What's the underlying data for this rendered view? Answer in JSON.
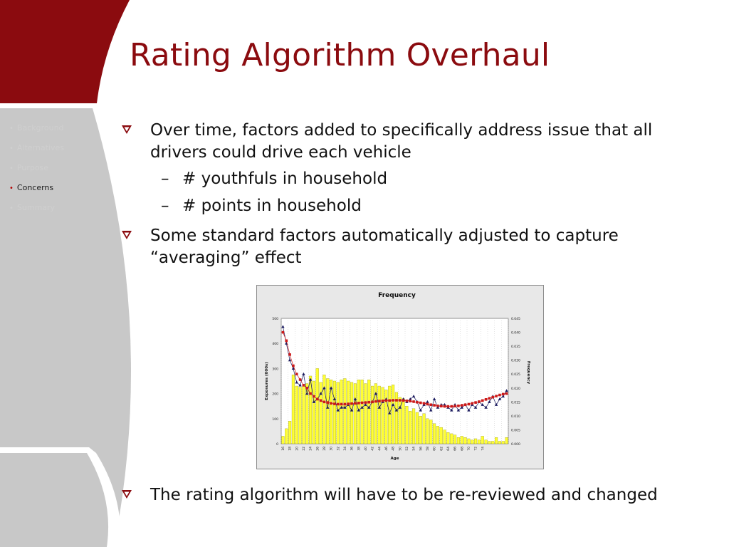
{
  "slide": {
    "title": "Rating Algorithm Overhaul",
    "colors": {
      "accent": "#8b0b0f",
      "sidebar": "#c8c8c8",
      "active_dot": "#b30000"
    }
  },
  "nav": {
    "items": [
      {
        "label": "Background",
        "active": false
      },
      {
        "label": "Alternatives",
        "active": false
      },
      {
        "label": "Purpose",
        "active": false
      },
      {
        "label": "Concerns",
        "active": true
      },
      {
        "label": "Summary",
        "active": false
      }
    ]
  },
  "content": {
    "bullet_icon": "checkbox-arrow-icon",
    "bullet1": "Over time, factors added to specifically address issue that all drivers could drive each vehicle",
    "sub1": "# youthfuls in household",
    "sub2": "# points in household",
    "sub_marker": "–",
    "bullet2": "Some standard factors automatically adjusted to capture “averaging” effect",
    "bullet3": "The rating algorithm will have to be re-reviewed and changed"
  },
  "chart_data": {
    "type": "bar",
    "title": "Frequency",
    "xlabel": "Age",
    "ylabel": "Exposures (000s)",
    "y2label": "Frequency",
    "ylim": [
      0,
      500
    ],
    "y2lim": [
      0,
      0.045
    ],
    "yticks": [
      "0",
      "100",
      "200",
      "300",
      "400",
      "500"
    ],
    "y2ticks": [
      "0.000",
      "0.005",
      "0.010",
      "0.015",
      "0.020",
      "0.025",
      "0.030",
      "0.035",
      "0.040",
      "0.045"
    ],
    "x_tick_labels": [
      "16",
      "18",
      "20",
      "22",
      "24",
      "26",
      "28",
      "30",
      "32",
      "34",
      "36",
      "38",
      "40",
      "42",
      "44",
      "46",
      "48",
      "50",
      "52",
      "54",
      "56",
      "58",
      "60",
      "62",
      "64",
      "66",
      "68",
      "70",
      "72",
      "74"
    ],
    "grid": true,
    "series": [
      {
        "kind": "bar",
        "axis": "left",
        "color": "#ffff33",
        "values": [
          30,
          60,
          90,
          275,
          230,
          225,
          230,
          240,
          270,
          250,
          300,
          245,
          275,
          260,
          255,
          250,
          245,
          255,
          260,
          250,
          245,
          240,
          255,
          255,
          240,
          255,
          230,
          240,
          230,
          225,
          215,
          230,
          235,
          205,
          185,
          180,
          150,
          130,
          140,
          125,
          110,
          120,
          100,
          95,
          80,
          70,
          65,
          55,
          45,
          40,
          35,
          25,
          30,
          25,
          20,
          15,
          20,
          15,
          30,
          15,
          10,
          10,
          25,
          10,
          10,
          25
        ]
      },
      {
        "kind": "line",
        "axis": "right",
        "color": "#1a1a5e",
        "marker": "triangle",
        "values": [
          0.042,
          0.036,
          0.03,
          0.027,
          0.022,
          0.021,
          0.025,
          0.018,
          0.023,
          0.015,
          0.016,
          0.018,
          0.02,
          0.013,
          0.02,
          0.016,
          0.012,
          0.013,
          0.013,
          0.014,
          0.012,
          0.016,
          0.012,
          0.013,
          0.014,
          0.013,
          0.015,
          0.018,
          0.013,
          0.015,
          0.016,
          0.011,
          0.014,
          0.012,
          0.013,
          0.016,
          0.015,
          0.016,
          0.017,
          0.015,
          0.012,
          0.014,
          0.015,
          0.012,
          0.016,
          0.013,
          0.014,
          0.014,
          0.013,
          0.012,
          0.014,
          0.012,
          0.013,
          0.014,
          0.012,
          0.014,
          0.013,
          0.015,
          0.014,
          0.013,
          0.015,
          0.017,
          0.014,
          0.016,
          0.017,
          0.019
        ]
      },
      {
        "kind": "line",
        "axis": "right",
        "color": "#cc1a1a",
        "marker": "square",
        "values": [
          0.04,
          0.037,
          0.032,
          0.028,
          0.025,
          0.023,
          0.021,
          0.02,
          0.018,
          0.017,
          0.016,
          0.0155,
          0.015,
          0.0148,
          0.0145,
          0.0143,
          0.0142,
          0.0142,
          0.0142,
          0.0143,
          0.0144,
          0.0145,
          0.0146,
          0.0147,
          0.0148,
          0.0149,
          0.015,
          0.0152,
          0.0153,
          0.0154,
          0.0155,
          0.0155,
          0.0156,
          0.0156,
          0.0156,
          0.0155,
          0.0154,
          0.0153,
          0.0151,
          0.0149,
          0.0147,
          0.0145,
          0.0142,
          0.014,
          0.0138,
          0.0136,
          0.0135,
          0.0134,
          0.0134,
          0.0134,
          0.0135,
          0.0136,
          0.0138,
          0.014,
          0.0142,
          0.0145,
          0.0148,
          0.0151,
          0.0155,
          0.0159,
          0.0163,
          0.0167,
          0.0171,
          0.0175,
          0.0178,
          0.018
        ]
      }
    ]
  }
}
